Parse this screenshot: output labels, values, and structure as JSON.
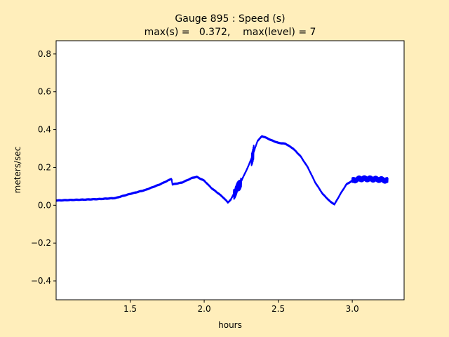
{
  "figure": {
    "background": "#ffeebb",
    "title_line1": "Gauge 895 : Speed (s)",
    "title_line2": "max(s) =   0.372,    max(level) = 7"
  },
  "chart_data": {
    "type": "line",
    "title": "Gauge 895 : Speed (s)",
    "subtitle": "max(s) =   0.372,    max(level) = 7",
    "xlabel": "hours",
    "ylabel": "meters/sec",
    "xlim": [
      1.0,
      3.35
    ],
    "ylim": [
      -0.5,
      0.87
    ],
    "xticks": [
      1.5,
      2.0,
      2.5,
      3.0
    ],
    "xtick_labels": [
      "1.5",
      "2.0",
      "2.5",
      "3.0"
    ],
    "yticks": [
      -0.4,
      -0.2,
      0.0,
      0.2,
      0.4,
      0.6,
      0.8
    ],
    "ytick_labels": [
      "−0.4",
      "−0.2",
      "0.0",
      "0.2",
      "0.4",
      "0.6",
      "0.8"
    ],
    "grid": false,
    "line_color": "#0000ff",
    "series": [
      {
        "x": [
          1.0,
          1.1,
          1.2,
          1.3,
          1.4,
          1.5,
          1.6,
          1.7,
          1.78,
          1.785,
          1.85,
          1.92,
          1.95,
          2.0,
          2.05,
          2.1,
          2.13,
          2.16,
          2.18,
          2.2,
          2.24,
          2.27,
          2.3,
          2.33,
          2.36,
          2.39,
          2.41,
          2.45,
          2.5,
          2.55,
          2.6,
          2.65,
          2.7,
          2.75,
          2.8,
          2.85,
          2.88,
          2.92,
          2.96,
          3.0,
          3.05,
          3.1,
          3.15,
          3.2,
          3.24
        ],
        "y": [
          0.025,
          0.028,
          0.03,
          0.033,
          0.038,
          0.06,
          0.08,
          0.11,
          0.14,
          0.11,
          0.12,
          0.145,
          0.15,
          0.13,
          0.09,
          0.06,
          0.04,
          0.015,
          0.03,
          0.06,
          0.11,
          0.16,
          0.21,
          0.27,
          0.34,
          0.365,
          0.36,
          0.345,
          0.33,
          0.325,
          0.3,
          0.26,
          0.2,
          0.12,
          0.06,
          0.02,
          0.005,
          0.06,
          0.11,
          0.13,
          0.14,
          0.14,
          0.138,
          0.135,
          0.13
        ]
      }
    ],
    "noise": [
      {
        "x0": 2.2,
        "x1": 2.25,
        "amp": 0.03
      },
      {
        "x0": 2.32,
        "x1": 2.335,
        "amp": 0.04
      },
      {
        "x0": 3.0,
        "x1": 3.24,
        "amp": 0.015
      }
    ]
  }
}
